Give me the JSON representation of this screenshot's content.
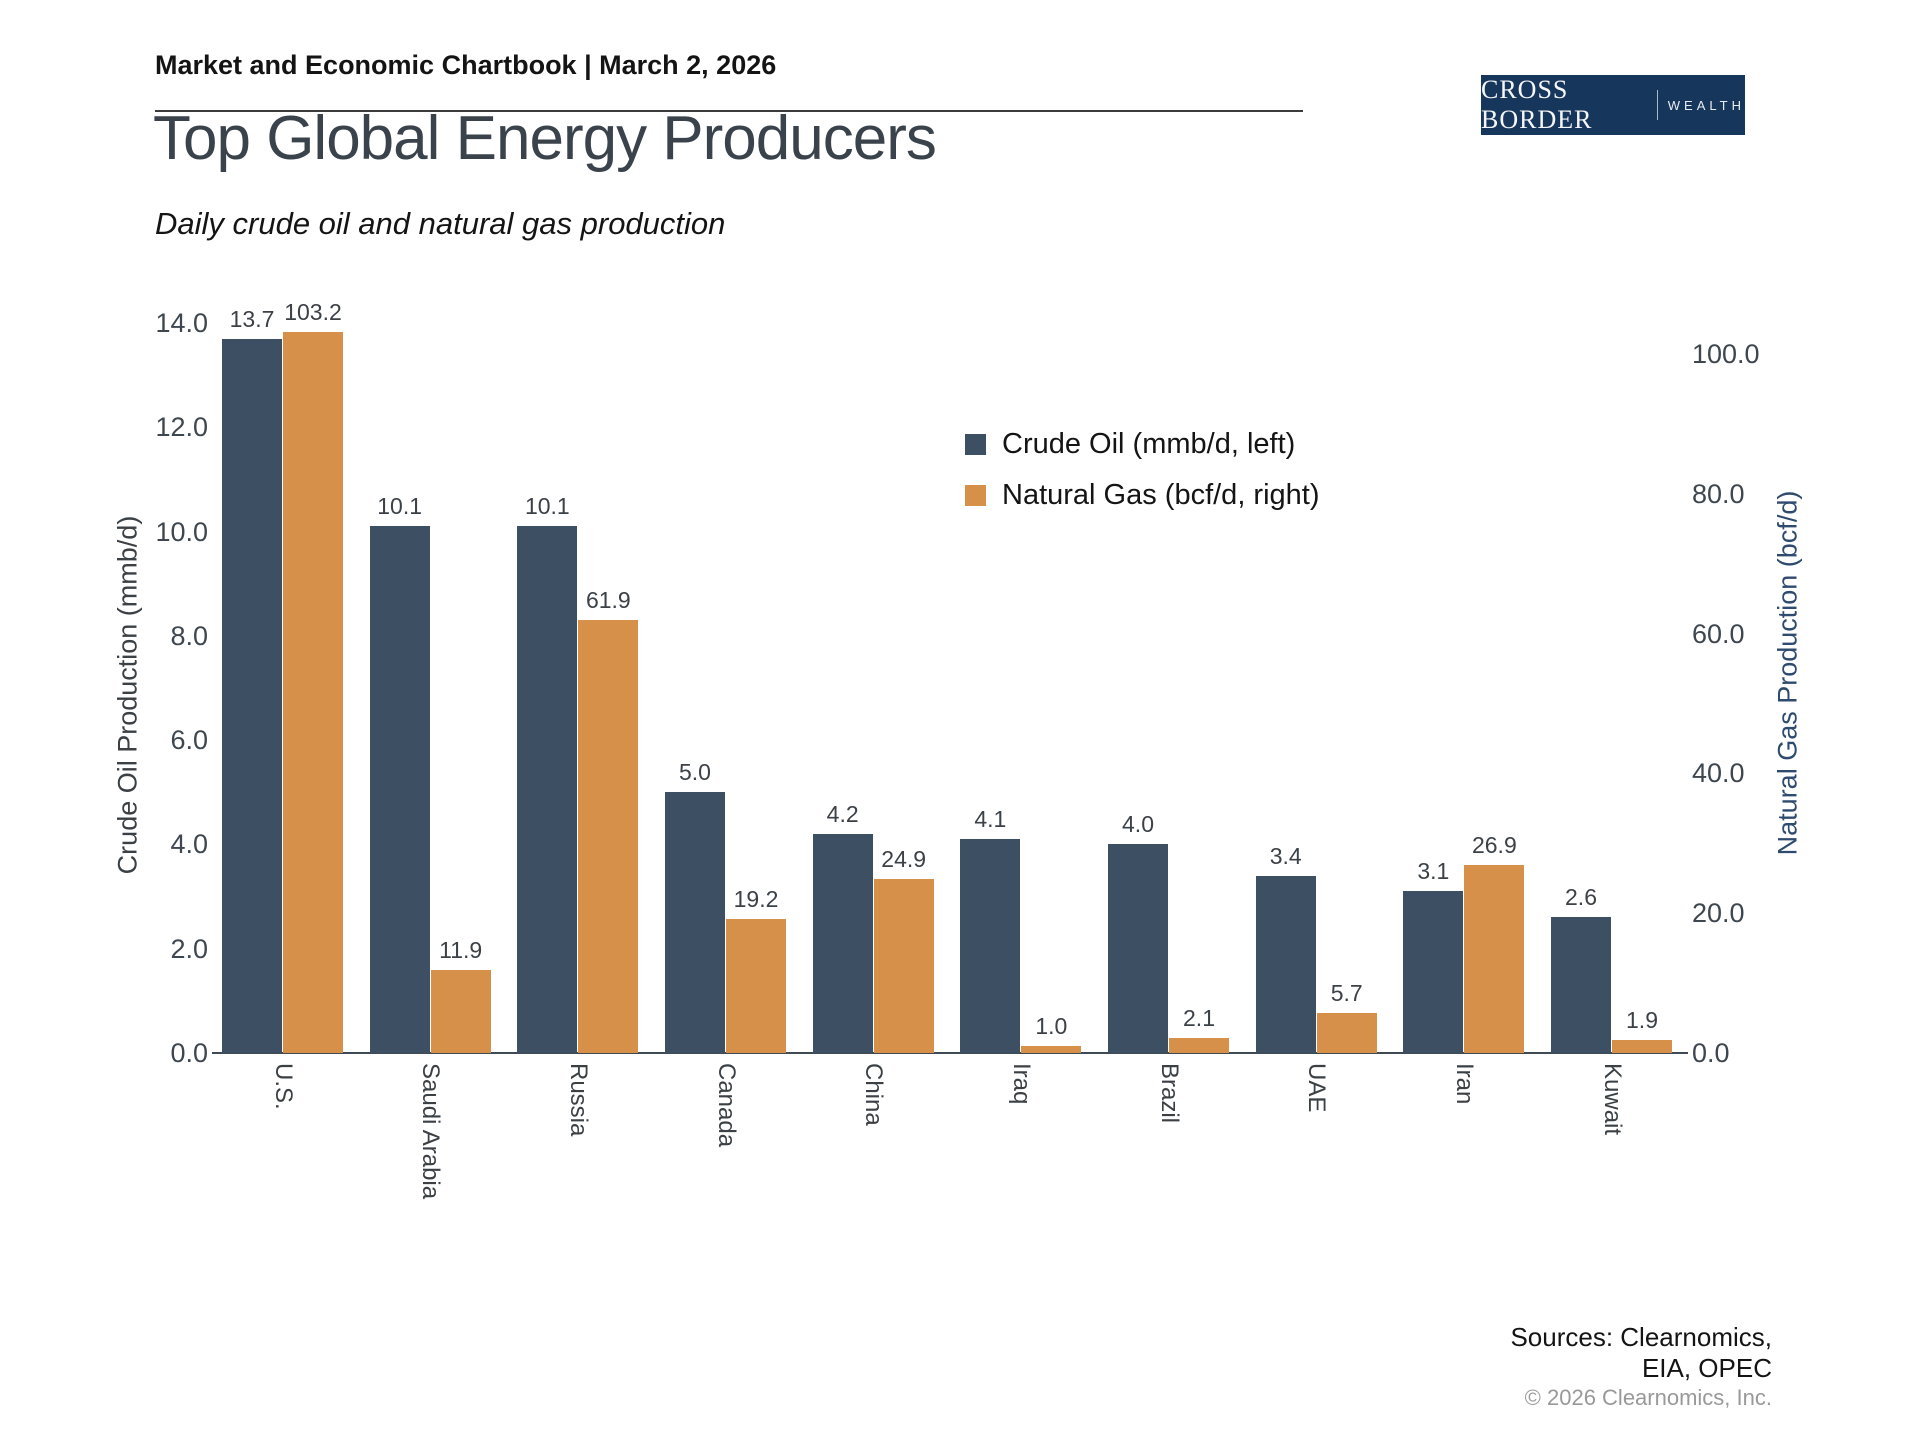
{
  "header": {
    "text": "Market and Economic Chartbook | March 2, 2026"
  },
  "logo": {
    "primary": "CROSS BORDER",
    "secondary": "WEALTH"
  },
  "title": "Top Global Energy Producers",
  "subtitle": "Daily crude oil and natural gas production",
  "chart_data": {
    "type": "bar",
    "categories": [
      "U.S.",
      "Saudi Arabia",
      "Russia",
      "Canada",
      "China",
      "Iraq",
      "Brazil",
      "UAE",
      "Iran",
      "Kuwait"
    ],
    "series": [
      {
        "name": "Crude Oil (mmb/d, left)",
        "axis": "left",
        "color": "#3d4f63",
        "values": [
          13.7,
          10.1,
          10.1,
          5.0,
          4.2,
          4.1,
          4.0,
          3.4,
          3.1,
          2.6
        ]
      },
      {
        "name": "Natural Gas (bcf/d, right)",
        "axis": "right",
        "color": "#d7904a",
        "values": [
          103.2,
          11.9,
          61.9,
          19.2,
          24.9,
          1.0,
          2.1,
          5.7,
          26.9,
          1.9
        ]
      }
    ],
    "left_axis": {
      "label": "Crude Oil Production (mmb/d)",
      "min": 0,
      "max": 14,
      "ticks": [
        "0.0",
        "2.0",
        "4.0",
        "6.0",
        "8.0",
        "10.0",
        "12.0",
        "14.0"
      ]
    },
    "right_axis": {
      "label": "Natural Gas Production (bcf/d)",
      "min": 0,
      "max": 100,
      "ticks": [
        "0.0",
        "20.0",
        "40.0",
        "60.0",
        "80.0",
        "100.0"
      ]
    },
    "legend_position": "upper right",
    "grid": false,
    "value_labels": true
  },
  "footer": {
    "sources_line1": "Sources: Clearnomics,",
    "sources_line2": "EIA, OPEC",
    "copyright": "© 2026 Clearnomics, Inc."
  }
}
